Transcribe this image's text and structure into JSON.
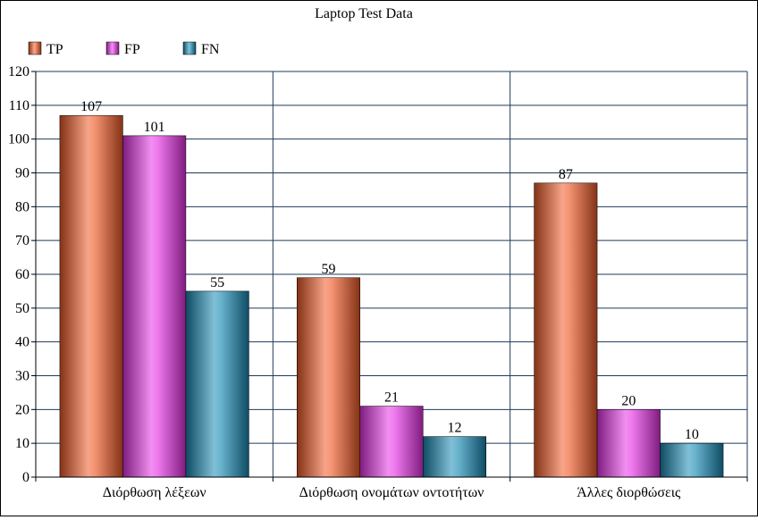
{
  "chart_data": {
    "type": "bar",
    "title": "Laptop Test Data",
    "xlabel": "",
    "ylabel": "",
    "categories": [
      "Διόρθωση λέξεων",
      "Διόρθωση ονομάτων οντοτήτων",
      "Άλλες διορθώσεις"
    ],
    "series": [
      {
        "name": "TP",
        "values": [
          107,
          59,
          87
        ],
        "color": "#f05a28"
      },
      {
        "name": "FP",
        "values": [
          101,
          21,
          20
        ],
        "color": "#e633e6"
      },
      {
        "name": "FN",
        "values": [
          55,
          12,
          10
        ],
        "color": "#1a8bb5"
      }
    ],
    "ylim": [
      0,
      120
    ],
    "yticks": [
      0,
      10,
      20,
      30,
      40,
      50,
      60,
      70,
      80,
      90,
      100,
      110,
      120
    ],
    "grid": true,
    "legend": "top-left",
    "gridline_color": "#1f3b5a"
  }
}
